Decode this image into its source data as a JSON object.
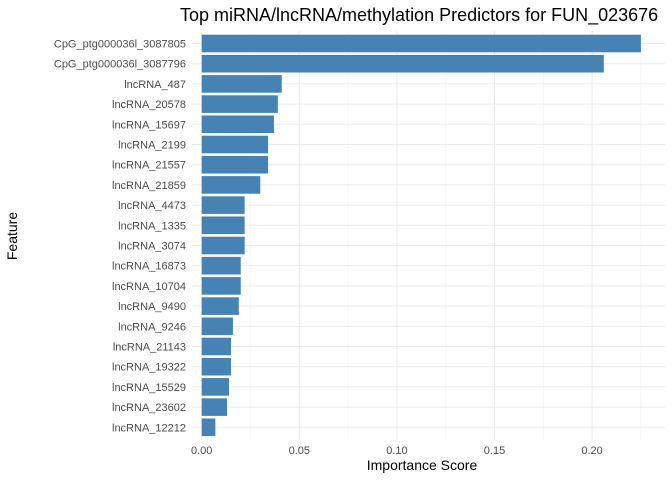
{
  "chart_data": {
    "type": "bar",
    "orientation": "horizontal",
    "title": "Top miRNA/lncRNA/methylation Predictors for FUN_023676",
    "xlabel": "Importance Score",
    "ylabel": "Feature",
    "xlim": [
      0,
      0.236
    ],
    "xticks": [
      0,
      0.05,
      0.1,
      0.15,
      0.2
    ],
    "xtick_labels": [
      "0.00",
      "0.05",
      "0.10",
      "0.15",
      "0.20"
    ],
    "grid": true,
    "bar_color": "#4682B4",
    "categories": [
      "CpG_ptg000036l_3087805",
      "CpG_ptg000036l_3087796",
      "lncRNA_487",
      "lncRNA_20578",
      "lncRNA_15697",
      "lncRNA_2199",
      "lncRNA_21557",
      "lncRNA_21859",
      "lncRNA_4473",
      "lncRNA_1335",
      "lncRNA_3074",
      "lncRNA_16873",
      "lncRNA_10704",
      "lncRNA_9490",
      "lncRNA_9246",
      "lncRNA_21143",
      "lncRNA_19322",
      "lncRNA_15529",
      "lncRNA_23602",
      "lncRNA_12212"
    ],
    "values": [
      0.225,
      0.206,
      0.041,
      0.039,
      0.037,
      0.034,
      0.034,
      0.03,
      0.022,
      0.022,
      0.022,
      0.02,
      0.02,
      0.019,
      0.016,
      0.015,
      0.015,
      0.014,
      0.013,
      0.007
    ]
  }
}
